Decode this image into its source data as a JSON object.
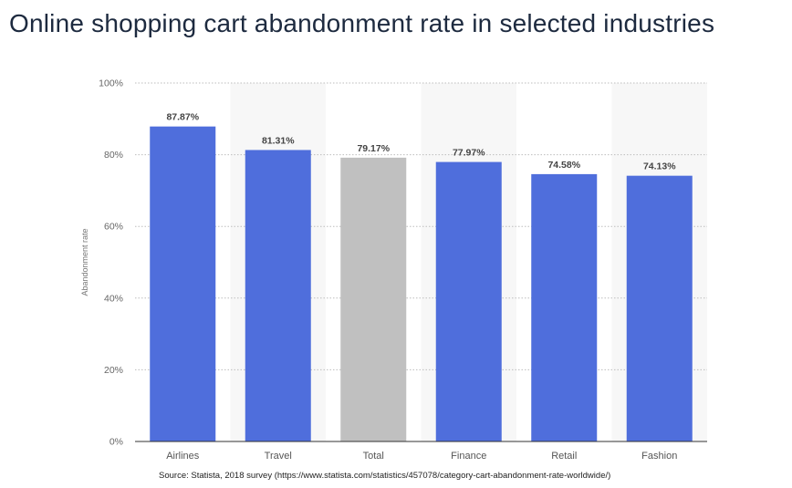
{
  "page": {
    "title": "Online shopping cart abandonment rate in selected industries",
    "source": "Source: Statista, 2018 survey (https://www.statista.com/statistics/457078/category-cart-abandonment-rate-worldwide/)"
  },
  "chart_data": {
    "type": "bar",
    "categories": [
      "Airlines",
      "Travel",
      "Total",
      "Finance",
      "Retail",
      "Fashion"
    ],
    "values": [
      87.87,
      81.31,
      79.17,
      77.97,
      74.58,
      74.13
    ],
    "value_labels": [
      "87.87%",
      "81.31%",
      "79.17%",
      "77.97%",
      "74.58%",
      "74.13%"
    ],
    "colors": [
      "#4f6edc",
      "#4f6edc",
      "#c0c0c0",
      "#4f6edc",
      "#4f6edc",
      "#4f6edc"
    ],
    "ylabel": "Abandonment rate",
    "ylim": [
      0,
      100
    ],
    "yticks": [
      0,
      20,
      40,
      60,
      80,
      100
    ],
    "ytick_labels": [
      "0%",
      "20%",
      "40%",
      "60%",
      "80%",
      "100%"
    ],
    "grid": true,
    "band_color": "#f7f7f7"
  }
}
